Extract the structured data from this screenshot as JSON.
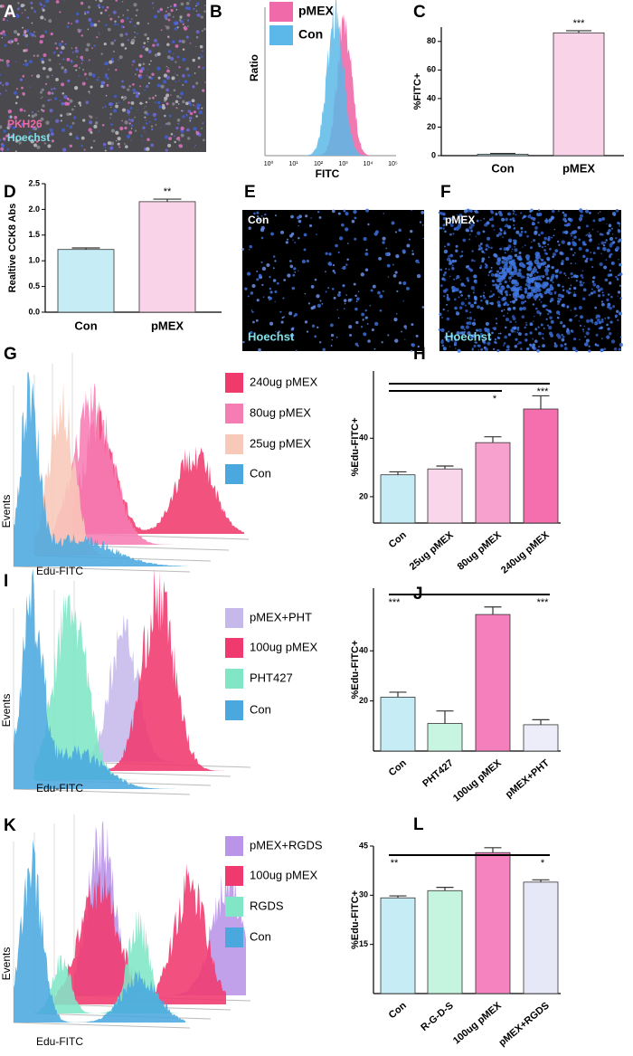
{
  "panel_labels": [
    "A",
    "B",
    "C",
    "D",
    "E",
    "F",
    "G",
    "H",
    "I",
    "J",
    "K",
    "L"
  ],
  "image_a": {
    "labels": [
      "PKH26",
      "Hoechst"
    ]
  },
  "image_e": {
    "label": "Con",
    "stain": "Hoechst"
  },
  "image_f": {
    "label": "pMEX",
    "stain": "Hoechst"
  },
  "flow_b": {
    "legend": [
      {
        "name": "pMEX",
        "color": "#f06aa9"
      },
      {
        "name": "Con",
        "color": "#5bb8e8"
      }
    ],
    "x_label": "FITC",
    "y_label": "Ratio",
    "x_ticks": [
      "10⁰",
      "10¹",
      "10²",
      "10³",
      "10⁴",
      "10⁵"
    ]
  },
  "flow_g": {
    "legend": [
      {
        "name": "240ug pMEX",
        "color": "#f03a6c"
      },
      {
        "name": "80ug pMEX",
        "color": "#f67cb4"
      },
      {
        "name": "25ug pMEX",
        "color": "#f8c8b8"
      },
      {
        "name": "Con",
        "color": "#4aa8de"
      }
    ],
    "x_label": "Edu-FITC",
    "y_label": "Events"
  },
  "flow_i": {
    "legend": [
      {
        "name": "pMEX+PHT",
        "color": "#c6b8ea"
      },
      {
        "name": "100ug pMEX",
        "color": "#f0396e"
      },
      {
        "name": "PHT427",
        "color": "#80e6c6"
      },
      {
        "name": "Con",
        "color": "#4aa8de"
      }
    ],
    "x_label": "Edu-FITC",
    "y_label": "Events"
  },
  "flow_k": {
    "legend": [
      {
        "name": "pMEX+RGDS",
        "color": "#b994e8"
      },
      {
        "name": "100ug pMEX",
        "color": "#f0396e"
      },
      {
        "name": "RGDS",
        "color": "#80e6c6"
      },
      {
        "name": "Con",
        "color": "#4aa8de"
      }
    ],
    "x_label": "Edu-FITC",
    "y_label": "Events"
  },
  "chart_data": [
    {
      "type": "bar",
      "categories": [
        "Con",
        "pMEX"
      ],
      "values": [
        1,
        86
      ],
      "errors": [
        0.5,
        1.5
      ],
      "colors": [
        "#c6ecf5",
        "#f9d3e8"
      ],
      "y_label": "%FITC+",
      "ylim": [
        0,
        90
      ],
      "yticks": [
        0,
        20,
        40,
        60,
        80
      ],
      "annotations": [
        {
          "label": "***",
          "over": "pMEX"
        }
      ]
    },
    {
      "type": "bar",
      "categories": [
        "Con",
        "pMEX"
      ],
      "values": [
        1.22,
        2.15
      ],
      "errors": [
        0.03,
        0.05
      ],
      "colors": [
        "#c6ecf5",
        "#f9d3e8"
      ],
      "y_label": "Realtive CCK8 Abs",
      "ylim": [
        0,
        2.5
      ],
      "yticks": [
        {
          "value": 0,
          "label": "0.0"
        },
        0.5,
        {
          "value": 1,
          "label": "1.0"
        },
        1.5,
        {
          "value": 2,
          "label": "2.0"
        },
        2.5
      ],
      "annotations": [
        {
          "label": "**",
          "over": "pMEX"
        }
      ]
    },
    {
      "type": "bar",
      "categories": [
        "Con",
        "25ug pMEX",
        "80ug pMEX",
        "240ug pMEX"
      ],
      "values": [
        27.5,
        29.5,
        38.5,
        50
      ],
      "errors": [
        1,
        1,
        2,
        4.5
      ],
      "colors": [
        "#c6ecf5",
        "#f9d6ea",
        "#f7a1cf",
        "#f56fae"
      ],
      "y_label": "%Edu-FITC+",
      "ylim": [
        11,
        63
      ],
      "yticks": [
        20,
        40
      ],
      "annotations": [
        {
          "label": "***",
          "between": [
            "Con",
            "240ug pMEX"
          ]
        },
        {
          "label": "*",
          "between": [
            "Con",
            "80ug pMEX"
          ]
        }
      ]
    },
    {
      "type": "bar",
      "categories": [
        "Con",
        "PHT427",
        "100ug pMEX",
        "pMEX+PHT"
      ],
      "values": [
        21.5,
        11,
        54.5,
        10.5
      ],
      "errors": [
        2,
        5,
        3,
        2
      ],
      "colors": [
        "#c6ecf5",
        "#c8f5e1",
        "#f57fbd",
        "#ecedf9"
      ],
      "y_label": "%Edu-FITC+",
      "ylim": [
        0,
        65
      ],
      "yticks": [
        20,
        40
      ],
      "annotations": [
        {
          "label": "***",
          "between": [
            "Con",
            "100ug pMEX"
          ]
        },
        {
          "label": "***",
          "between": [
            "100ug pMEX",
            "pMEX+PHT"
          ]
        }
      ]
    },
    {
      "type": "bar",
      "categories": [
        "Con",
        "R-G-D-S",
        "100ug pMEX",
        "pMEX+RGDS"
      ],
      "values": [
        29.2,
        31.4,
        43,
        34
      ],
      "errors": [
        0.6,
        1,
        1.5,
        0.7
      ],
      "colors": [
        "#c6ecf5",
        "#c6f5df",
        "#f583c0",
        "#e6e8f8"
      ],
      "y_label": "%Edu-FITC+",
      "ylim": [
        0,
        45
      ],
      "yticks": [
        15,
        30,
        45
      ],
      "annotations": [
        {
          "label": "**",
          "between": [
            "Con",
            "100ug pMEX"
          ]
        },
        {
          "label": "*",
          "between": [
            "100ug pMEX",
            "pMEX+RGDS"
          ]
        }
      ]
    }
  ]
}
